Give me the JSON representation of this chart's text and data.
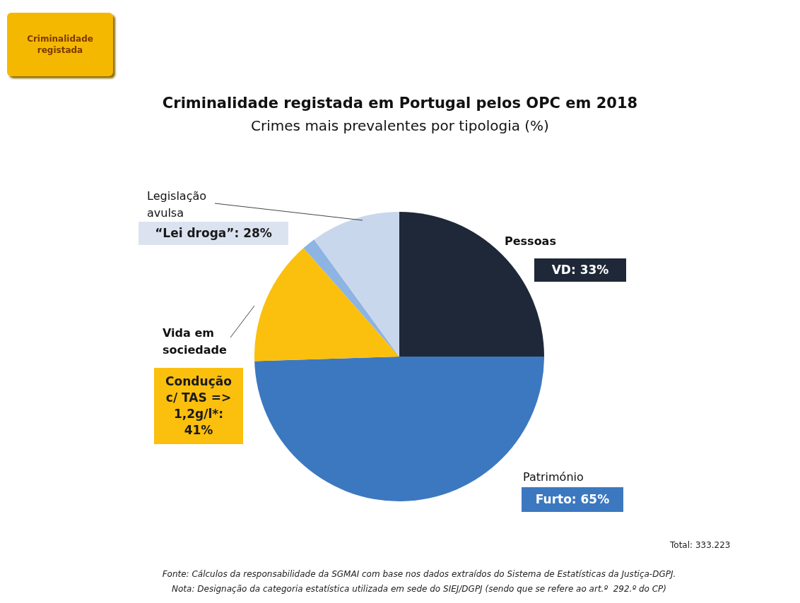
{
  "chart_data": {
    "type": "pie",
    "title": "Criminalidade registada em Portugal pelos OPC em 2018",
    "subtitle": "Crimes mais prevalentes por tipologia (%)",
    "categories": [
      "Pessoas",
      "Património",
      "Vida em sociedade",
      null,
      "Legislação avulsa"
    ],
    "values": [
      25,
      49.5,
      14,
      1.5,
      10
    ],
    "colors": [
      "#1f2838",
      "#3c78c0",
      "#fbbf0e",
      "#8db4e2",
      "#c9d7ec"
    ],
    "annotations": [
      "Criminalidade registada",
      "VD: 33%",
      "Furto: 65%",
      "Condução c/ TAS => 1,2g/l*: 41%",
      "“Lei droga”: 28%",
      "Total: 333.223",
      "Fonte: Cálculos da responsabilidade da SGMAI com base nos dados extraídos do Sistema de Estatísticas da Justiça-DGPJ.",
      "Nota: Designação da categoria estatística utilizada em sede do SIEJ/DGPJ (sendo que se refere ao art.º  292.º do CP)"
    ]
  }
}
